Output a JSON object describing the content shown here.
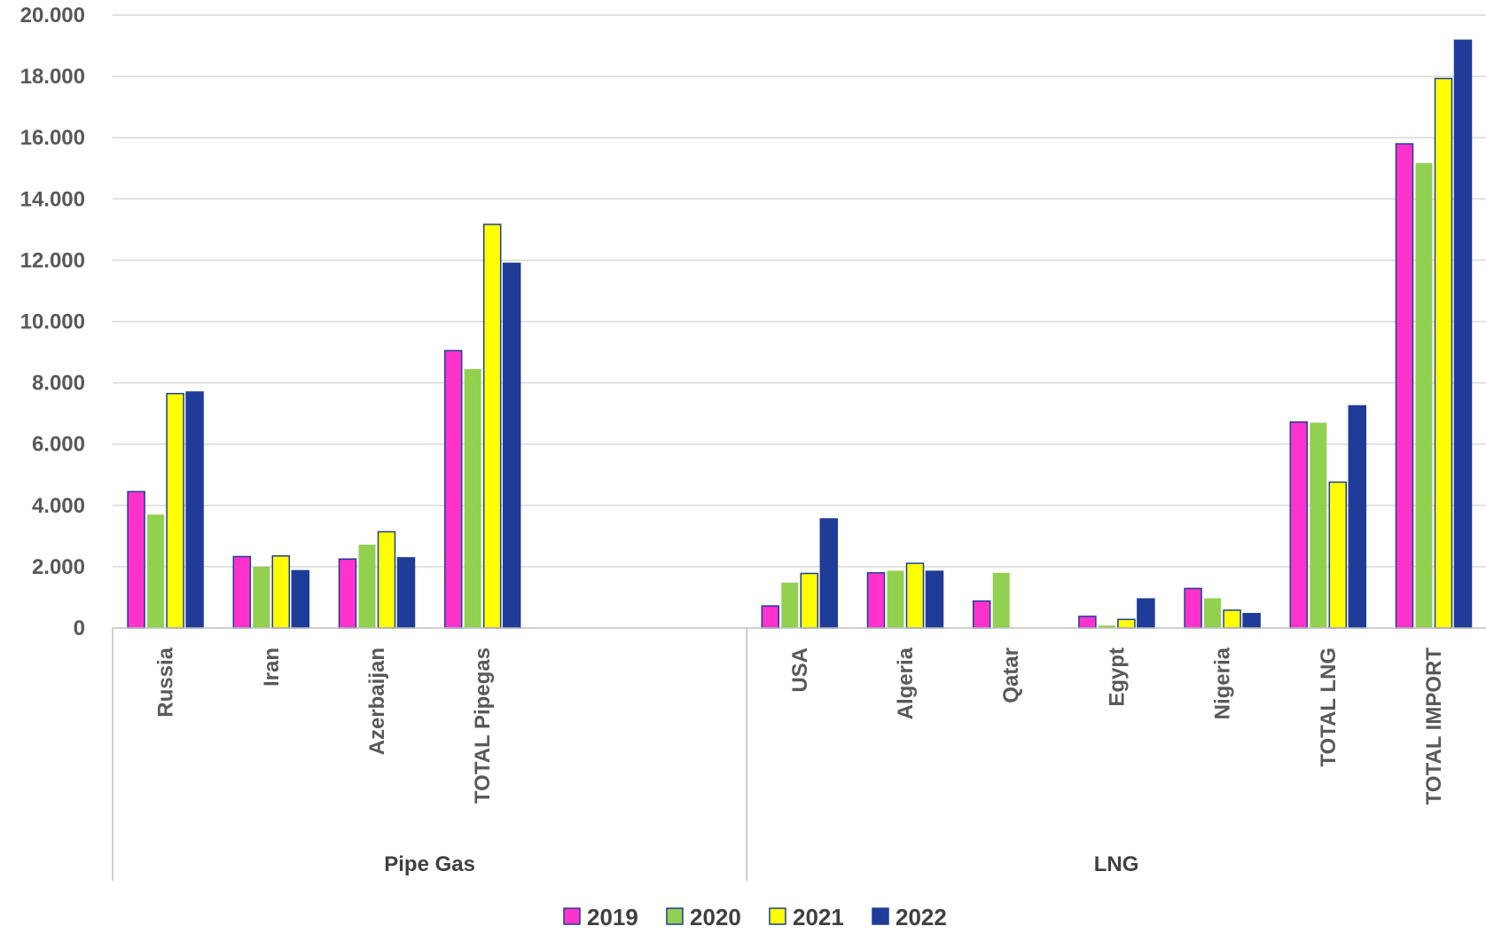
{
  "chart_data": {
    "type": "bar",
    "groups": [
      {
        "label": "Pipe Gas",
        "categories": [
          "Russia",
          "Iran",
          "Azerbaijan",
          "TOTAL Pipegas"
        ]
      },
      {
        "label": "LNG",
        "categories": [
          "USA",
          "Algeria",
          "Qatar",
          "Egypt",
          "Nigeria",
          "TOTAL LNG",
          "TOTAL IMPORT"
        ]
      }
    ],
    "categories": [
      "Russia",
      "Iran",
      "Azerbaijan",
      "TOTAL Pipegas",
      "USA",
      "Algeria",
      "Qatar",
      "Egypt",
      "Nigeria",
      "TOTAL LNG",
      "TOTAL IMPORT"
    ],
    "series": [
      {
        "name": "2019",
        "color": "#ff33cc",
        "values": [
          4450,
          2330,
          2250,
          9050,
          720,
          1800,
          880,
          380,
          1290,
          6720,
          15800
        ]
      },
      {
        "name": "2020",
        "color": "#92d050",
        "values": [
          3700,
          2000,
          2720,
          8450,
          1480,
          1870,
          1800,
          80,
          970,
          6700,
          15170
        ]
      },
      {
        "name": "2021",
        "color": "#ffff00",
        "values": [
          7650,
          2350,
          3140,
          13170,
          1780,
          2110,
          0,
          280,
          580,
          4760,
          17930
        ]
      },
      {
        "name": "2022",
        "color": "#1f3c99",
        "values": [
          7700,
          1870,
          2290,
          11900,
          3560,
          1850,
          0,
          950,
          470,
          7250,
          19180
        ]
      }
    ],
    "ylim": [
      0,
      20000
    ],
    "yticks": [
      "0",
      "2.000",
      "4.000",
      "6.000",
      "8.000",
      "10.000",
      "12.000",
      "14.000",
      "16.000",
      "18.000",
      "20.000"
    ],
    "grid": true,
    "legend_position": "bottom"
  }
}
